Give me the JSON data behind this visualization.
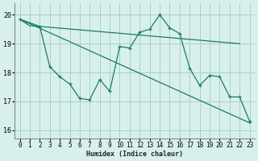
{
  "xlabel": "Humidex (Indice chaleur)",
  "xlim": [
    -0.5,
    23.5
  ],
  "ylim": [
    15.7,
    20.4
  ],
  "yticks": [
    16,
    17,
    18,
    19,
    20
  ],
  "xticks": [
    0,
    1,
    2,
    3,
    4,
    5,
    6,
    7,
    8,
    9,
    10,
    11,
    12,
    13,
    14,
    15,
    16,
    17,
    18,
    19,
    20,
    21,
    22,
    23
  ],
  "bg_color": "#d8f0ec",
  "grid_color": "#aacfc8",
  "line_color": "#1a7a6a",
  "line1_x": [
    0,
    1,
    2,
    22
  ],
  "line1_y": [
    19.85,
    19.62,
    19.6,
    19.0
  ],
  "line2_x": [
    0,
    23
  ],
  "line2_y": [
    19.85,
    16.25
  ],
  "line3_x": [
    0,
    2,
    3,
    4,
    5,
    6,
    7,
    8,
    9,
    10,
    11,
    12,
    13,
    14,
    15,
    16,
    17,
    18,
    19,
    20,
    21,
    22,
    23
  ],
  "line3_y": [
    19.85,
    19.6,
    18.2,
    17.85,
    17.6,
    17.1,
    17.05,
    17.75,
    17.35,
    18.9,
    18.85,
    19.4,
    19.5,
    20.0,
    19.55,
    19.35,
    18.15,
    17.55,
    17.9,
    17.85,
    17.15,
    17.15,
    16.3
  ]
}
